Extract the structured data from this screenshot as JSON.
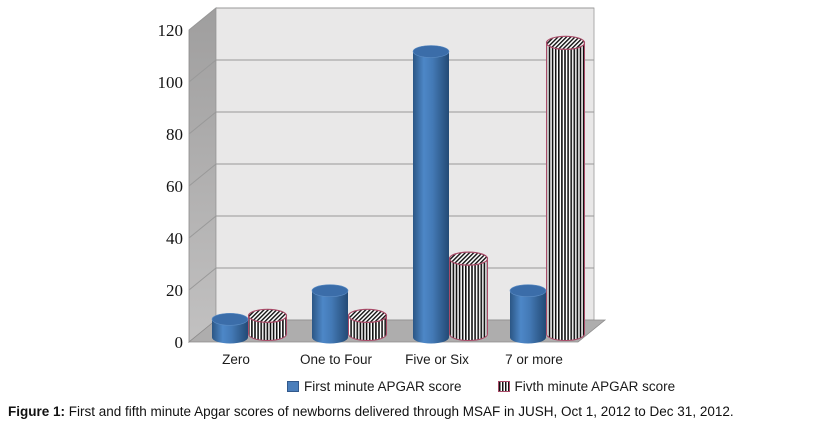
{
  "figure": {
    "caption_label": "Figure 1:",
    "caption_text": " First and fifth minute Apgar scores of newborns delivered through MSAF in JUSH, Oct 1, 2012 to Dec 31, 2012."
  },
  "chart_data": {
    "type": "bar",
    "subtype": "3d-cylinder",
    "title": "",
    "xlabel": "",
    "ylabel": "",
    "categories": [
      "Zero",
      "One to Four",
      "Five or Six",
      "7 or more"
    ],
    "series": [
      {
        "name": "First minute APGAR score",
        "values": [
          7,
          18,
          110,
          18
        ],
        "style": "solid",
        "color": "#4a7ebb"
      },
      {
        "name": "Fivth minute APGAR score",
        "values": [
          7,
          7,
          29,
          112
        ],
        "style": "vertical-stripes",
        "stripe_colors": [
          "#111111",
          "#ffffff"
        ],
        "outline_color": "#a94b68"
      }
    ],
    "ylim": [
      0,
      120
    ],
    "yticks": [
      0,
      20,
      40,
      60,
      80,
      100,
      120
    ],
    "grid": true,
    "legend_position": "bottom",
    "wall_color": "#e9e8e8",
    "side_wall_color": "#a9a8a8",
    "floor_color": "#aeadad",
    "gridline_color": "#999999"
  }
}
